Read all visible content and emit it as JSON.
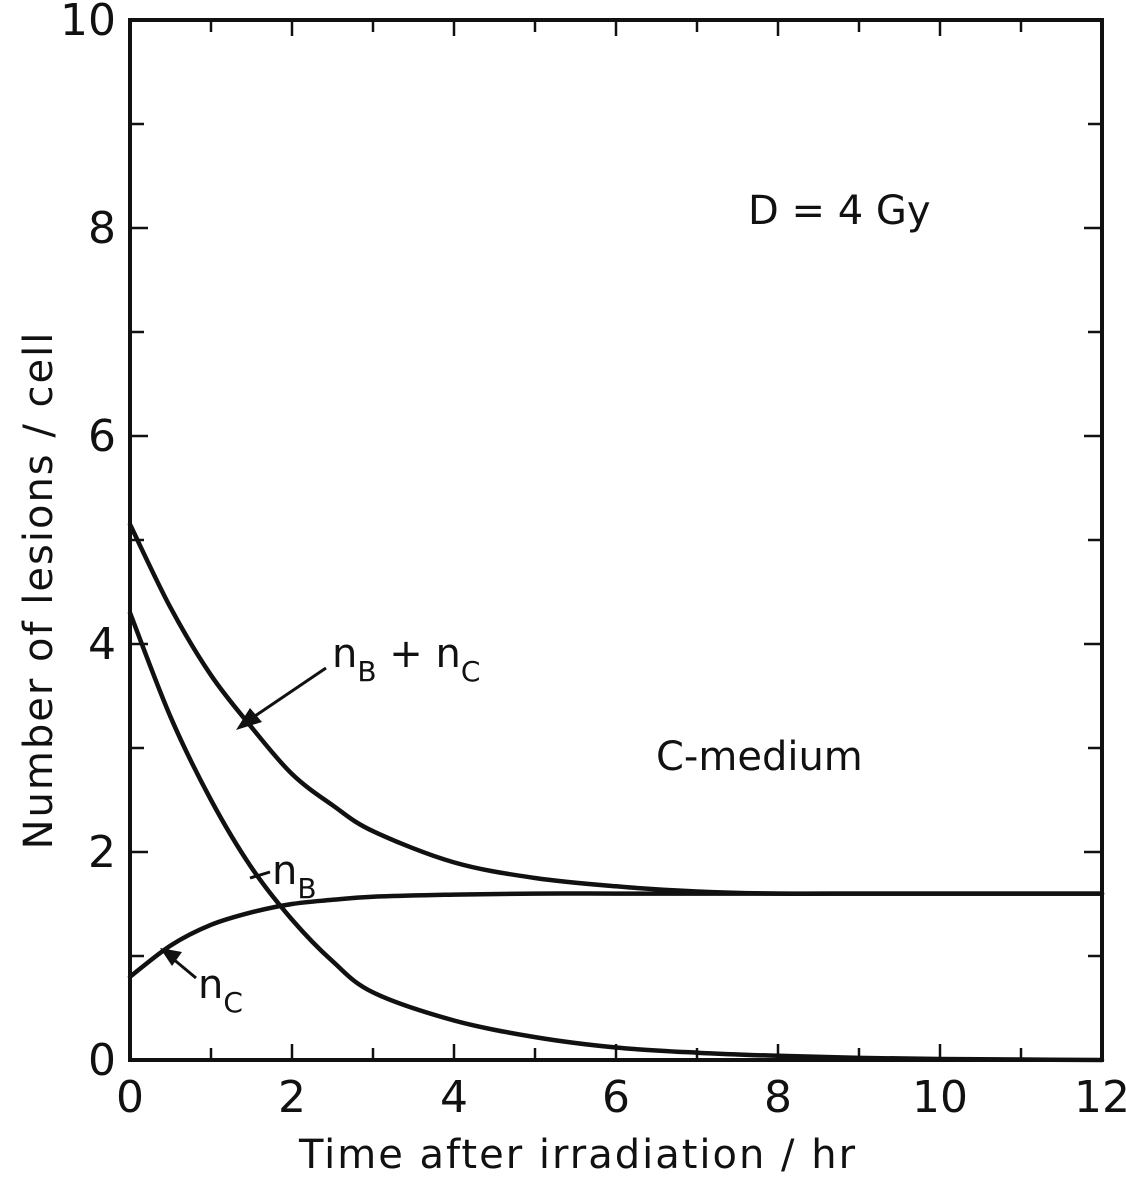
{
  "chart_data": {
    "type": "line",
    "xlabel": "Time after irradiation / hr",
    "ylabel": "Number of lesions / cell",
    "xlim": [
      0,
      12
    ],
    "ylim": [
      0,
      10
    ],
    "x_ticks": [
      "0",
      "2",
      "4",
      "6",
      "8",
      "10",
      "12"
    ],
    "y_ticks": [
      "0",
      "2",
      "4",
      "6",
      "8",
      "10"
    ],
    "grid": false,
    "annotations": [
      {
        "text": "D = 4 Gy"
      },
      {
        "text": "C-medium"
      }
    ],
    "series": [
      {
        "name": "nB + nC",
        "label_main": "n",
        "label_sub1": "B",
        "label_plus": " + n",
        "label_sub2": "C",
        "x": [
          0,
          0.5,
          1,
          1.5,
          2,
          2.5,
          3,
          4,
          5,
          6,
          7,
          8,
          9,
          10,
          11,
          12
        ],
        "y": [
          5.15,
          4.35,
          3.7,
          3.2,
          2.75,
          2.45,
          2.2,
          1.9,
          1.75,
          1.67,
          1.62,
          1.6,
          1.6,
          1.6,
          1.6,
          1.6
        ]
      },
      {
        "name": "nB",
        "label_main": "n",
        "label_sub1": "B",
        "x": [
          0,
          0.5,
          1,
          1.5,
          2,
          2.5,
          3,
          4,
          5,
          6,
          7,
          8,
          9,
          10,
          11,
          12
        ],
        "y": [
          4.3,
          3.3,
          2.5,
          1.85,
          1.35,
          0.95,
          0.65,
          0.38,
          0.22,
          0.12,
          0.07,
          0.04,
          0.02,
          0.01,
          0.005,
          0.0
        ]
      },
      {
        "name": "nC",
        "label_main": "n",
        "label_sub1": "C",
        "x": [
          0,
          0.5,
          1,
          1.5,
          2,
          2.5,
          3,
          4,
          5,
          6,
          7,
          8,
          9,
          10,
          11,
          12
        ],
        "y": [
          0.8,
          1.1,
          1.3,
          1.42,
          1.5,
          1.54,
          1.57,
          1.59,
          1.6,
          1.6,
          1.6,
          1.6,
          1.6,
          1.6,
          1.6,
          1.6
        ]
      }
    ]
  }
}
